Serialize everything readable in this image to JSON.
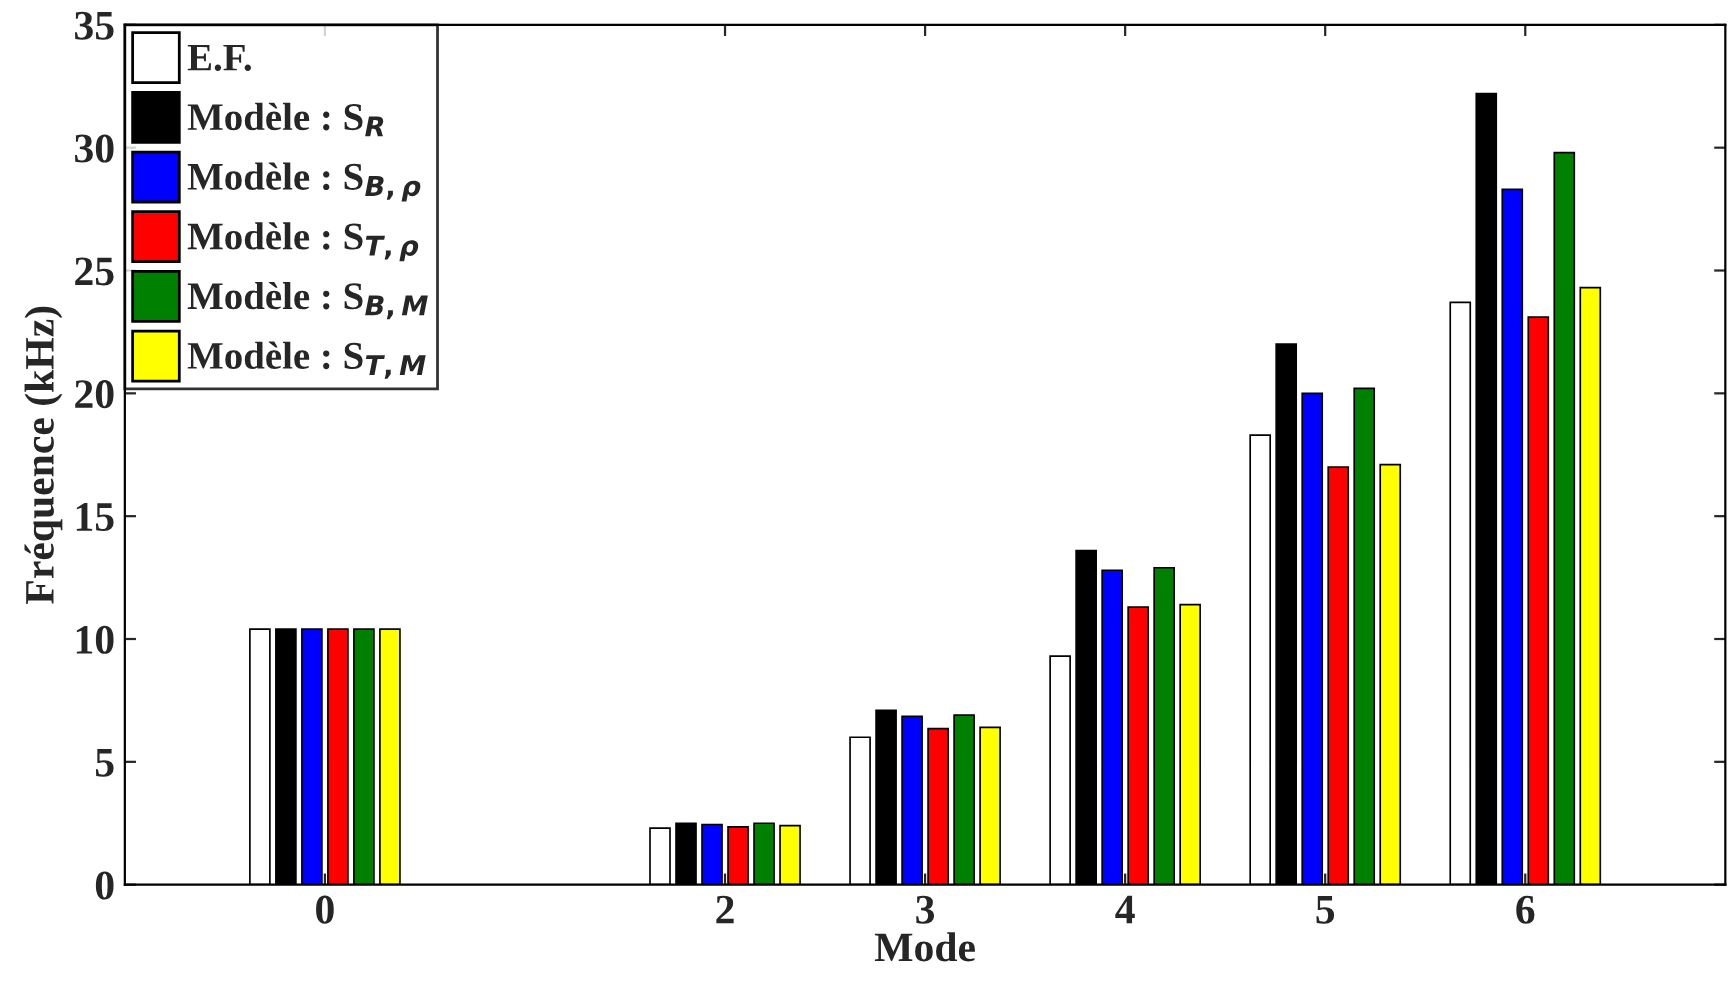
{
  "chart_data": {
    "type": "bar",
    "xlabel": "Mode",
    "ylabel": "Fréquence (kHz)",
    "x": [
      0,
      2,
      3,
      4,
      5,
      6
    ],
    "series": [
      {
        "name": "E.F.",
        "color": "#ffffff",
        "values": [
          10.4,
          2.3,
          6.0,
          9.3,
          18.3,
          23.7
        ]
      },
      {
        "name": "Modèle : S$_{R}$",
        "color": "#000000",
        "values": [
          10.4,
          2.5,
          7.1,
          13.6,
          22.0,
          32.2
        ]
      },
      {
        "name": "Modèle : S$_{B,ρ}$",
        "color": "#0000ff",
        "values": [
          10.4,
          2.45,
          6.85,
          12.8,
          20.0,
          28.3
        ]
      },
      {
        "name": "Modèle : S$_{T,ρ}$",
        "color": "#ff0000",
        "values": [
          10.4,
          2.35,
          6.35,
          11.3,
          17.0,
          23.1
        ]
      },
      {
        "name": "Modèle : S$_{B,M}$",
        "color": "#008000",
        "values": [
          10.4,
          2.5,
          6.9,
          12.9,
          20.2,
          29.8
        ]
      },
      {
        "name": "Modèle : S$_{T,M}$",
        "color": "#ffff00",
        "values": [
          10.4,
          2.4,
          6.4,
          11.4,
          17.1,
          24.3
        ]
      }
    ],
    "xlim": [
      -1,
      7
    ],
    "xticks": [
      0,
      2,
      3,
      4,
      5,
      6
    ],
    "ylim": [
      0,
      35
    ],
    "yticks": [
      0,
      5,
      10,
      15,
      20,
      25,
      30,
      35
    ],
    "grid": false,
    "legend": "top left"
  }
}
